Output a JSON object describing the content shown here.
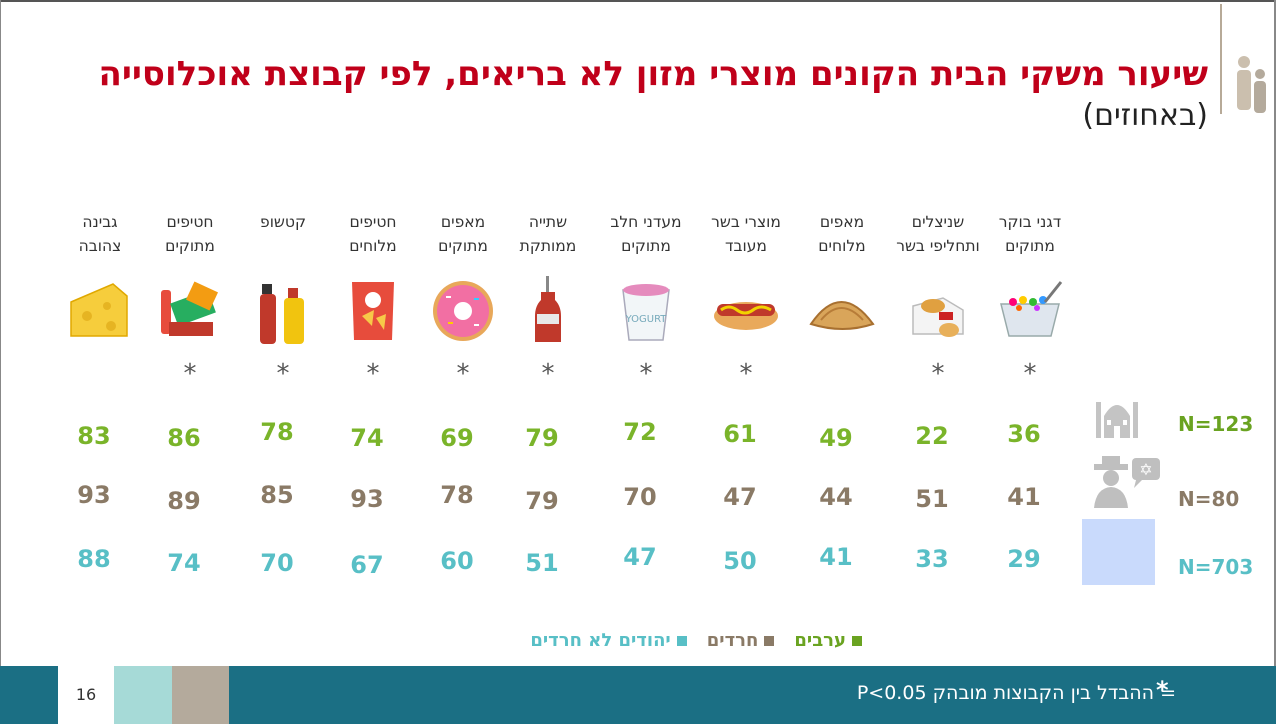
{
  "title": "שיעור משקי הבית הקונים מוצרי מזון לא בריאים, לפי קבוצת אוכלוסייה",
  "subtitle": "(באחוזים)",
  "page_number": "16",
  "footnote": "= ההבדל בין הקבוצות מובהק P<0.05",
  "footnote_star": "*",
  "legend": {
    "arab": "ערבים",
    "haredi": "חרדים",
    "jewish": "יהודים לא חרדים"
  },
  "colors": {
    "arab": "#7ab42a",
    "haredi": "#8a7a66",
    "jewish": "#58bfc6",
    "title": "#c0001a",
    "footer": "#1b6f84"
  },
  "groups": {
    "arab_n": "N=123",
    "haredi_n": "N=80",
    "jewish_n": "N=703"
  },
  "products": [
    {
      "label": "דגני בוקר\nמתוקים",
      "icon": "cereal-icon",
      "star": "*",
      "arab": "36",
      "haredi": "41",
      "jewish": "29"
    },
    {
      "label": "שניצלים\nותחליפי בשר",
      "icon": "schnitzel-icon",
      "star": "*",
      "arab": "22",
      "haredi": "51",
      "jewish": "33"
    },
    {
      "label": "מאפים\nמלוחים",
      "icon": "pastry-icon",
      "star": "",
      "arab": "49",
      "haredi": "44",
      "jewish": "41"
    },
    {
      "label": "מוצרי בשר\nמעובד",
      "icon": "hotdog-icon",
      "star": "*",
      "arab": "61",
      "haredi": "47",
      "jewish": "50"
    },
    {
      "label": "מעדני חלב\nמתוקים",
      "icon": "yogurt-icon",
      "star": "*",
      "arab": "72",
      "haredi": "70",
      "jewish": "47"
    },
    {
      "label": "שתייה\nממותקת",
      "icon": "soda-icon",
      "star": "*",
      "arab": "79",
      "haredi": "79",
      "jewish": "51"
    },
    {
      "label": "מאפים\nמתוקים",
      "icon": "donut-icon",
      "star": "*",
      "arab": "69",
      "haredi": "78",
      "jewish": "60"
    },
    {
      "label": "חטיפים\nמלוחים",
      "icon": "chips-icon",
      "star": "*",
      "arab": "74",
      "haredi": "93",
      "jewish": "67"
    },
    {
      "label": "קטשופ",
      "icon": "ketchup-icon",
      "star": "*",
      "arab": "78",
      "haredi": "85",
      "jewish": "70"
    },
    {
      "label": "חטיפים\nמתוקים",
      "icon": "sweets-icon",
      "star": "*",
      "arab": "86",
      "haredi": "89",
      "jewish": "74"
    },
    {
      "label": "גבינה\nצהובה",
      "icon": "cheese-icon",
      "star": "",
      "arab": "83",
      "haredi": "93",
      "jewish": "88"
    }
  ]
}
